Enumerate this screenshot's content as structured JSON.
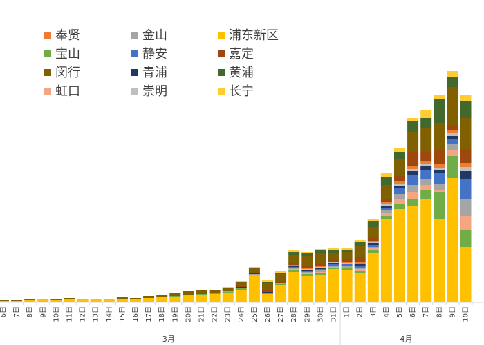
{
  "chart_data": {
    "type": "bar",
    "stacked": true,
    "title": "",
    "xlabel": "",
    "ylabel": "",
    "grid": false,
    "legend_position": "top-left",
    "categories": [
      "6日",
      "7日",
      "8日",
      "9日",
      "10日",
      "11日",
      "12日",
      "13日",
      "14日",
      "15日",
      "16日",
      "17日",
      "18日",
      "19日",
      "20日",
      "21日",
      "22日",
      "23日",
      "24日",
      "25日",
      "26日",
      "27日",
      "28日",
      "29日",
      "30日",
      "31日",
      "1日",
      "2日",
      "3日",
      "4日",
      "5日",
      "6日",
      "7日",
      "8日",
      "9日",
      "10日"
    ],
    "month_labels": [
      {
        "label": "3月",
        "from_index": 0,
        "to_index": 25
      },
      {
        "label": "4月",
        "from_index": 26,
        "to_index": 35
      }
    ],
    "legend_order": [
      "奉贤",
      "金山",
      "浦东新区",
      "宝山",
      "静安",
      "嘉定",
      "闵行",
      "青浦",
      "黄浦",
      "虹口",
      "崇明",
      "长宁"
    ],
    "series": [
      {
        "name": "浦东新区",
        "color": "#FFC000",
        "values": [
          2,
          2,
          3,
          4,
          3,
          4,
          4,
          4,
          4,
          5,
          4,
          6,
          7,
          8,
          10,
          11,
          12,
          14,
          18,
          38,
          12,
          25,
          44,
          38,
          40,
          48,
          46,
          42,
          72,
          120,
          135,
          140,
          150,
          120,
          180,
          80
        ]
      },
      {
        "name": "宝山",
        "color": "#70AD47",
        "values": [
          0,
          0,
          0,
          0,
          0,
          0,
          0,
          0,
          0,
          0,
          0,
          0,
          0,
          1,
          1,
          1,
          1,
          1,
          2,
          0,
          1,
          2,
          3,
          3,
          3,
          1,
          3,
          3,
          4,
          5,
          8,
          10,
          12,
          40,
          32,
          25
        ]
      },
      {
        "name": "虹口",
        "color": "#F4A582",
        "values": [
          0,
          0,
          0,
          0,
          0,
          0,
          0,
          0,
          0,
          0,
          0,
          0,
          0,
          0,
          0,
          0,
          0,
          0,
          0,
          1,
          0,
          0,
          1,
          1,
          1,
          2,
          1,
          3,
          2,
          5,
          6,
          10,
          8,
          3,
          8,
          20
        ]
      },
      {
        "name": "金山",
        "color": "#A5A5A5",
        "values": [
          0,
          0,
          0,
          0,
          0,
          0,
          0,
          0,
          0,
          0,
          0,
          0,
          0,
          0,
          0,
          0,
          0,
          1,
          1,
          2,
          0,
          1,
          2,
          2,
          2,
          2,
          2,
          1,
          2,
          4,
          8,
          10,
          9,
          9,
          9,
          25
        ]
      },
      {
        "name": "静安",
        "color": "#4472C4",
        "values": [
          0,
          0,
          0,
          0,
          0,
          0,
          0,
          0,
          0,
          0,
          0,
          0,
          0,
          0,
          0,
          0,
          0,
          0,
          0,
          0,
          0,
          0,
          1,
          1,
          2,
          3,
          3,
          3,
          3,
          3,
          8,
          15,
          12,
          15,
          8,
          28
        ]
      },
      {
        "name": "青浦",
        "color": "#1F3864",
        "values": [
          0,
          0,
          0,
          0,
          0,
          0,
          0,
          0,
          0,
          0,
          0,
          0,
          0,
          0,
          0,
          0,
          0,
          0,
          1,
          1,
          2,
          0,
          2,
          2,
          2,
          1,
          1,
          3,
          3,
          3,
          4,
          5,
          6,
          4,
          4,
          12
        ]
      },
      {
        "name": "崇明",
        "color": "#BFBFBF",
        "values": [
          0,
          0,
          0,
          0,
          0,
          0,
          0,
          0,
          0,
          0,
          0,
          0,
          0,
          0,
          0,
          0,
          0,
          0,
          0,
          0,
          0,
          0,
          0,
          1,
          1,
          1,
          1,
          1,
          1,
          3,
          3,
          3,
          3,
          3,
          4,
          6
        ]
      },
      {
        "name": "奉贤",
        "color": "#ED7D31",
        "values": [
          0,
          0,
          0,
          0,
          0,
          0,
          0,
          0,
          0,
          0,
          0,
          0,
          0,
          0,
          0,
          0,
          0,
          0,
          0,
          0,
          0,
          0,
          1,
          1,
          2,
          1,
          1,
          2,
          2,
          2,
          3,
          4,
          5,
          6,
          4,
          6
        ]
      },
      {
        "name": "嘉定",
        "color": "#9E480E",
        "values": [
          0,
          0,
          0,
          0,
          0,
          0,
          0,
          0,
          0,
          0,
          0,
          0,
          0,
          0,
          0,
          0,
          0,
          0,
          1,
          1,
          3,
          3,
          3,
          3,
          3,
          4,
          5,
          8,
          5,
          5,
          8,
          20,
          12,
          20,
          8,
          20
        ]
      },
      {
        "name": "闵行",
        "color": "#806000",
        "values": [
          1,
          1,
          1,
          1,
          1,
          2,
          1,
          1,
          1,
          2,
          2,
          3,
          4,
          4,
          5,
          5,
          5,
          5,
          6,
          6,
          10,
          10,
          12,
          15,
          15,
          8,
          10,
          15,
          15,
          20,
          25,
          30,
          35,
          40,
          55,
          45
        ]
      },
      {
        "name": "黄浦",
        "color": "#43682B",
        "values": [
          0,
          0,
          0,
          0,
          0,
          0,
          0,
          0,
          0,
          0,
          0,
          0,
          0,
          0,
          0,
          0,
          0,
          0,
          1,
          1,
          2,
          2,
          4,
          4,
          4,
          4,
          3,
          6,
          8,
          12,
          10,
          15,
          15,
          35,
          15,
          25
        ]
      },
      {
        "name": "长宁",
        "color": "#FFCC33",
        "values": [
          0,
          0,
          0,
          0,
          0,
          0,
          0,
          0,
          0,
          0,
          0,
          0,
          0,
          0,
          0,
          0,
          0,
          1,
          1,
          1,
          2,
          2,
          2,
          2,
          2,
          3,
          3,
          3,
          3,
          5,
          6,
          5,
          12,
          6,
          8,
          8
        ]
      }
    ]
  }
}
